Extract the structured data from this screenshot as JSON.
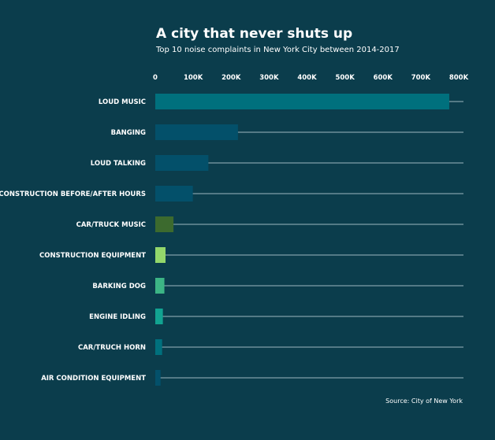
{
  "colors": {
    "background": "#0b3d4c",
    "text": "#ffffff",
    "row_line": "#9db8c0",
    "bar_colors": [
      "#00707d",
      "#03506a",
      "#03506a",
      "#03506a",
      "#3c6a2e",
      "#93d76b",
      "#3cb585",
      "#12a391",
      "#00707d",
      "#03506a"
    ]
  },
  "chart_data": {
    "type": "bar",
    "orientation": "horizontal",
    "title": "A city that never shuts up",
    "subtitle": "Top 10 noise complaints in New York City between 2014-2017",
    "source": "Source: City of New York",
    "categories": [
      "LOUD MUSIC",
      "BANGING",
      "LOUD TALKING",
      "CONSTRUCTION BEFORE/AFTER HOURS",
      "CAR/TRUCK MUSIC",
      "CONSTRUCTION EQUIPMENT",
      "BARKING DOG",
      "ENGINE IDLING",
      "CAR/TRUCH HORN",
      "AIR CONDITION EQUIPMENT"
    ],
    "values": [
      775000,
      218000,
      140000,
      99000,
      48000,
      27000,
      24000,
      20000,
      18000,
      14000
    ],
    "x_ticks": [
      0,
      100000,
      200000,
      300000,
      400000,
      500000,
      600000,
      700000,
      800000
    ],
    "x_tick_labels": [
      "0",
      "100K",
      "200K",
      "300K",
      "400K",
      "500K",
      "600K",
      "700K",
      "800K"
    ],
    "xlim": [
      0,
      800000
    ],
    "axis_position": "top",
    "grid": false,
    "legend": "none"
  }
}
